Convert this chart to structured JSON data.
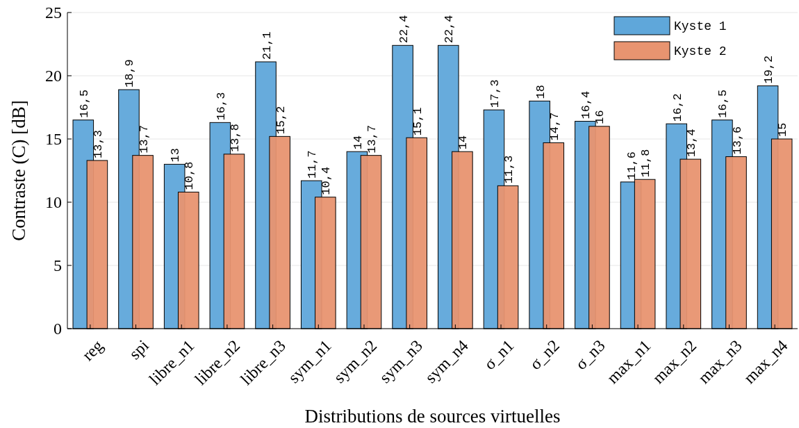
{
  "chart_data": {
    "type": "bar",
    "xlabel": "Distributions de sources virtuelles",
    "ylabel": "Contraste (C) [dB]",
    "categories": [
      "reg",
      "spi",
      "libre_n1",
      "libre_n2",
      "libre_n3",
      "sym_n1",
      "sym_n2",
      "sym_n3",
      "sym_n4",
      "σ_n1",
      "σ_n2",
      "σ_n3",
      "max_n1",
      "max_n2",
      "max_n3",
      "max_n4"
    ],
    "series": [
      {
        "name": "Kyste 1",
        "color": "#5fa7da",
        "values": [
          16.5,
          18.9,
          13,
          16.3,
          21.1,
          11.7,
          14,
          22.4,
          22.4,
          17.3,
          18,
          16.4,
          11.6,
          16.2,
          16.5,
          19.2
        ],
        "value_labels": [
          "16,5",
          "18,9",
          "13",
          "16,3",
          "21,1",
          "11,7",
          "14",
          "22,4",
          "22,4",
          "17,3",
          "18",
          "16,4",
          "11,6",
          "16,2",
          "16,5",
          "19,2"
        ]
      },
      {
        "name": "Kyste 2",
        "color": "#e89470",
        "values": [
          13.3,
          13.7,
          10.8,
          13.8,
          15.2,
          10.4,
          13.7,
          15.1,
          14,
          11.3,
          14.7,
          16,
          11.8,
          13.4,
          13.6,
          15
        ],
        "value_labels": [
          "13,3",
          "13,7",
          "10,8",
          "13,8",
          "15,2",
          "10,4",
          "13,7",
          "15,1",
          "14",
          "11,3",
          "14,7",
          "16",
          "11,8",
          "13,4",
          "13,6",
          "15"
        ]
      }
    ],
    "ylim": [
      0,
      25
    ],
    "yticks": [
      0,
      5,
      10,
      15,
      20,
      25
    ],
    "grid": "y",
    "legend": "top right"
  }
}
